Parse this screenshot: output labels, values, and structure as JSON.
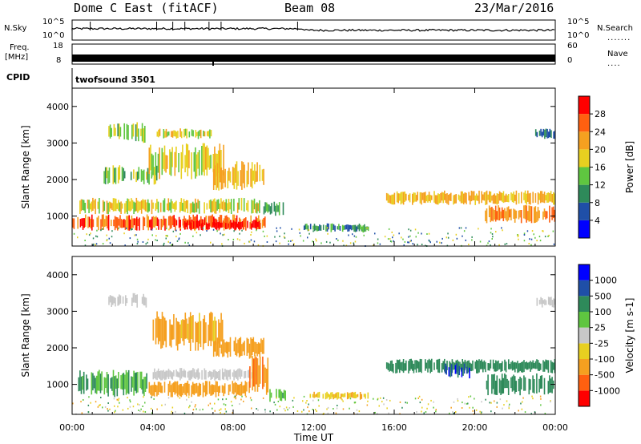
{
  "header": {
    "title": "Dome C East (fitACF)",
    "beam": "Beam 08",
    "date": "23/Mar/2016"
  },
  "top_panels": {
    "nsky_label": "N.Sky",
    "nsky_ticks": [
      "10^5",
      "10^0"
    ],
    "nsearch_label": "N.Search",
    "nsearch_ticks": [
      "10^5",
      "10^0"
    ],
    "freq_label_1": "Freq.",
    "freq_label_2": "[MHz]",
    "freq_ticks": [
      "18",
      "8"
    ],
    "nave_label": "Nave",
    "nave_ticks": [
      "60",
      "0"
    ],
    "cpid_label": "CPID",
    "cpid_value": "twofsound 3501"
  },
  "chart_data": [
    {
      "type": "heatmap",
      "panel": "power",
      "ylabel": "Slant Range [km]",
      "xlabel": "Time UT",
      "x_ticks": [
        "00:00",
        "04:00",
        "08:00",
        "12:00",
        "16:00",
        "20:00",
        "00:00"
      ],
      "x_hours": [
        0,
        4,
        8,
        12,
        16,
        20,
        24
      ],
      "xlim": [
        0,
        24
      ],
      "ylim": [
        180,
        4500
      ],
      "y_ticks": [
        1000,
        2000,
        3000,
        4000
      ],
      "colorbar_label": "Power [dB]",
      "colorbar_ticks": [
        "28",
        "24",
        "20",
        "16",
        "12",
        "8",
        "4"
      ],
      "colorbar_range": [
        0,
        32
      ],
      "colors": [
        "#0000ff",
        "#1f4fa8",
        "#2e8a5a",
        "#5fc640",
        "#e8d020",
        "#f5a020",
        "#ff6010",
        "#ff0000"
      ],
      "regions": [
        {
          "x": [
            0,
            9.6
          ],
          "y": [
            600,
            1050
          ],
          "value": 26
        },
        {
          "x": [
            0.3,
            9.3
          ],
          "y": [
            1050,
            1500
          ],
          "value": 18
        },
        {
          "x": [
            5.5,
            9.4
          ],
          "y": [
            600,
            900
          ],
          "value": 30
        },
        {
          "x": [
            1.5,
            4.2
          ],
          "y": [
            1850,
            2400
          ],
          "value": 14
        },
        {
          "x": [
            3.8,
            7.5
          ],
          "y": [
            2000,
            3000
          ],
          "value": 18
        },
        {
          "x": [
            1.8,
            3.7
          ],
          "y": [
            3000,
            3600
          ],
          "value": 15
        },
        {
          "x": [
            4.2,
            7.0
          ],
          "y": [
            3100,
            3400
          ],
          "value": 19
        },
        {
          "x": [
            7.0,
            9.5
          ],
          "y": [
            1700,
            2500
          ],
          "value": 20
        },
        {
          "x": [
            9.5,
            10.5
          ],
          "y": [
            1000,
            1400
          ],
          "value": 12
        },
        {
          "x": [
            11.5,
            14.7
          ],
          "y": [
            550,
            800
          ],
          "value": 10
        },
        {
          "x": [
            15.6,
            24.0
          ],
          "y": [
            1300,
            1700
          ],
          "value": 20
        },
        {
          "x": [
            20.5,
            24.0
          ],
          "y": [
            800,
            1300
          ],
          "value": 24
        },
        {
          "x": [
            23.0,
            24.0
          ],
          "y": [
            3100,
            3400
          ],
          "value": 8
        }
      ]
    },
    {
      "type": "heatmap",
      "panel": "velocity",
      "ylabel": "Slant Range [km]",
      "xlabel": "Time UT",
      "x_ticks": [
        "00:00",
        "04:00",
        "08:00",
        "12:00",
        "16:00",
        "20:00",
        "00:00"
      ],
      "x_hours": [
        0,
        4,
        8,
        12,
        16,
        20,
        24
      ],
      "xlim": [
        0,
        24
      ],
      "ylim": [
        180,
        4500
      ],
      "y_ticks": [
        1000,
        2000,
        3000,
        4000
      ],
      "colorbar_label": "Velocity [m s-1]",
      "colorbar_ticks": [
        "1000",
        "500",
        "100",
        "25",
        "-25",
        "-100",
        "-500",
        "-1000"
      ],
      "colors": [
        "#ff0000",
        "#ff6010",
        "#f5a020",
        "#e8d020",
        "#c8c8c8",
        "#5fc640",
        "#2e8a5a",
        "#1f4fa8",
        "#0000ff"
      ],
      "regions": [
        {
          "x": [
            0.3,
            3.8
          ],
          "y": [
            650,
            1400
          ],
          "value": 100
        },
        {
          "x": [
            3.8,
            8.8
          ],
          "y": [
            650,
            1100
          ],
          "value": -300
        },
        {
          "x": [
            4.0,
            9.2
          ],
          "y": [
            1100,
            1450
          ],
          "value": 0
        },
        {
          "x": [
            8.8,
            9.8
          ],
          "y": [
            700,
            1800
          ],
          "value": -400
        },
        {
          "x": [
            4.0,
            7.5
          ],
          "y": [
            1900,
            3000
          ],
          "value": -150
        },
        {
          "x": [
            1.8,
            3.7
          ],
          "y": [
            3100,
            3500
          ],
          "value": 0
        },
        {
          "x": [
            7.0,
            9.5
          ],
          "y": [
            1700,
            2300
          ],
          "value": -200
        },
        {
          "x": [
            9.8,
            10.6
          ],
          "y": [
            500,
            900
          ],
          "value": 80
        },
        {
          "x": [
            11.8,
            14.7
          ],
          "y": [
            580,
            800
          ],
          "value": -90
        },
        {
          "x": [
            15.6,
            24.0
          ],
          "y": [
            1300,
            1700
          ],
          "value": 300
        },
        {
          "x": [
            18.5,
            19.8
          ],
          "y": [
            1150,
            1600
          ],
          "value": 800
        },
        {
          "x": [
            20.5,
            24.0
          ],
          "y": [
            700,
            1300
          ],
          "value": 250
        },
        {
          "x": [
            23.0,
            24.0
          ],
          "y": [
            3100,
            3400
          ],
          "value": 0
        }
      ]
    }
  ]
}
